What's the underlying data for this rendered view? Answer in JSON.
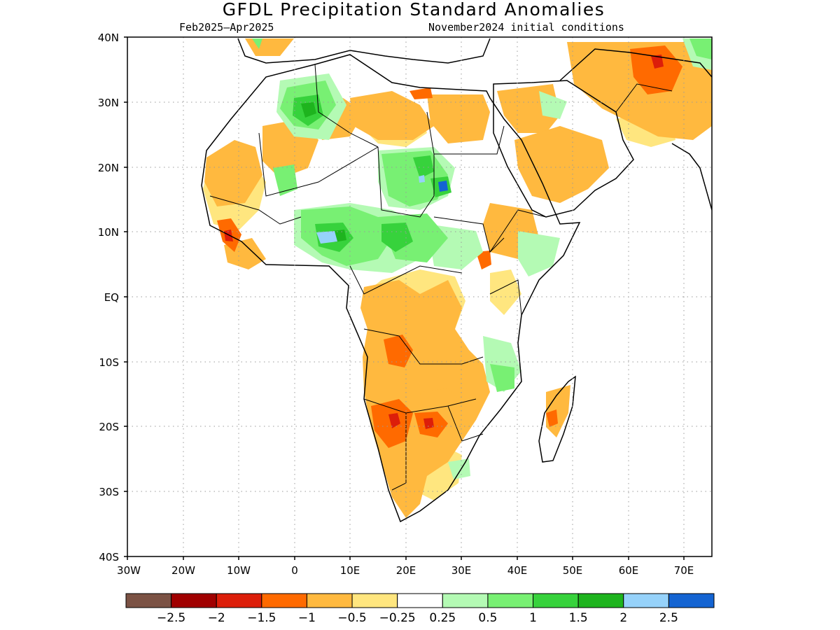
{
  "title": "GFDL Precipitation Standard Anomalies",
  "period": "Feb2025–Apr2025",
  "init": "November2024 initial conditions",
  "lat_labels": [
    "40N",
    "30N",
    "20N",
    "10N",
    "EQ",
    "10S",
    "20S",
    "30S",
    "40S"
  ],
  "lon_labels": [
    "30W",
    "20W",
    "10W",
    "0",
    "10E",
    "20E",
    "30E",
    "40E",
    "50E",
    "60E",
    "70E"
  ],
  "colorbar": {
    "colors": [
      "#7b5244",
      "#a00000",
      "#dc1e0a",
      "#ff6a00",
      "#ffb93f",
      "#ffe67f",
      "#ffffff",
      "#b4fab4",
      "#78f073",
      "#37d23c",
      "#1eb41e",
      "#96d2fa",
      "#1464d2"
    ],
    "labels": [
      "−2.5",
      "−2",
      "−1.5",
      "−1",
      "−0.5",
      "−0.25",
      "0.25",
      "0.5",
      "1",
      "1.5",
      "2",
      "2.5"
    ]
  }
}
